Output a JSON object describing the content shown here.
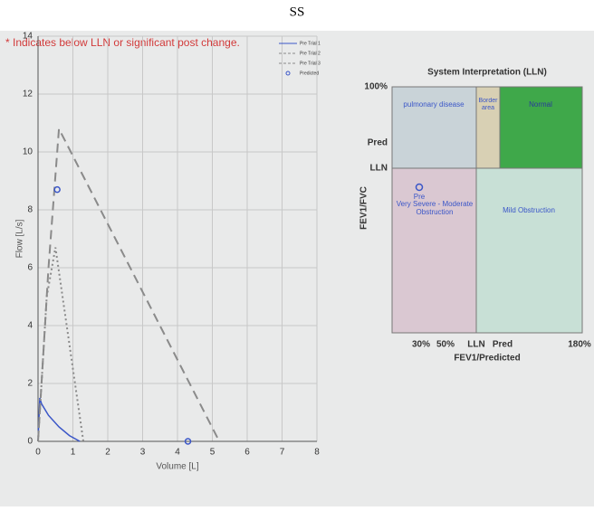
{
  "title": "SS",
  "note": "* Indicates below LLN or significant post change.",
  "chart_data": {
    "type": "line",
    "x_label": "Volume [L]",
    "y_label": "Flow [L/s]",
    "xlim": [
      0,
      8
    ],
    "xticks": [
      0,
      1,
      2,
      3,
      4,
      5,
      6,
      7,
      8
    ],
    "ylim": [
      0,
      14
    ],
    "yticks": [
      0,
      2,
      4,
      6,
      8,
      10,
      12,
      14
    ],
    "grid": true,
    "series": [
      {
        "name": "Pre Trial 1",
        "color": "#3a56c8",
        "style": "solid",
        "x": [
          0,
          0.05,
          0.1,
          0.3,
          0.6,
          0.9,
          1.2
        ],
        "values": [
          0,
          1.5,
          1.3,
          0.9,
          0.5,
          0.2,
          0
        ]
      },
      {
        "name": "Pre Trial 2",
        "color": "#8a8a8a",
        "style": "dashed",
        "x": [
          0,
          0.3,
          0.6,
          5.2
        ],
        "values": [
          0,
          6,
          10.8,
          0
        ]
      },
      {
        "name": "Pre Trial 3",
        "color": "#8a8a8a",
        "style": "dotted",
        "x": [
          0,
          0.25,
          0.5,
          1.3
        ],
        "values": [
          0,
          5,
          6.7,
          0
        ]
      },
      {
        "name": "Predicted",
        "color": "#3a56c8",
        "style": "marker",
        "x": [
          0.55,
          4.3
        ],
        "values": [
          8.7,
          0
        ]
      }
    ]
  },
  "interpretation": {
    "title": "System Interpretation (LLN)",
    "y_label": "FEV1/FVC",
    "x_label": "FEV1/Predicted",
    "y_ticks": [
      "100%",
      "Pred",
      "LLN"
    ],
    "x_ticks": [
      "30%",
      "50%",
      "LLN",
      "Pred",
      "180%"
    ],
    "regions": [
      "pulmonary disease",
      "Border area",
      "Normal",
      "Very Severe - Moderate Obstruction",
      "Mild Obstruction"
    ],
    "point_label": "Pre"
  }
}
